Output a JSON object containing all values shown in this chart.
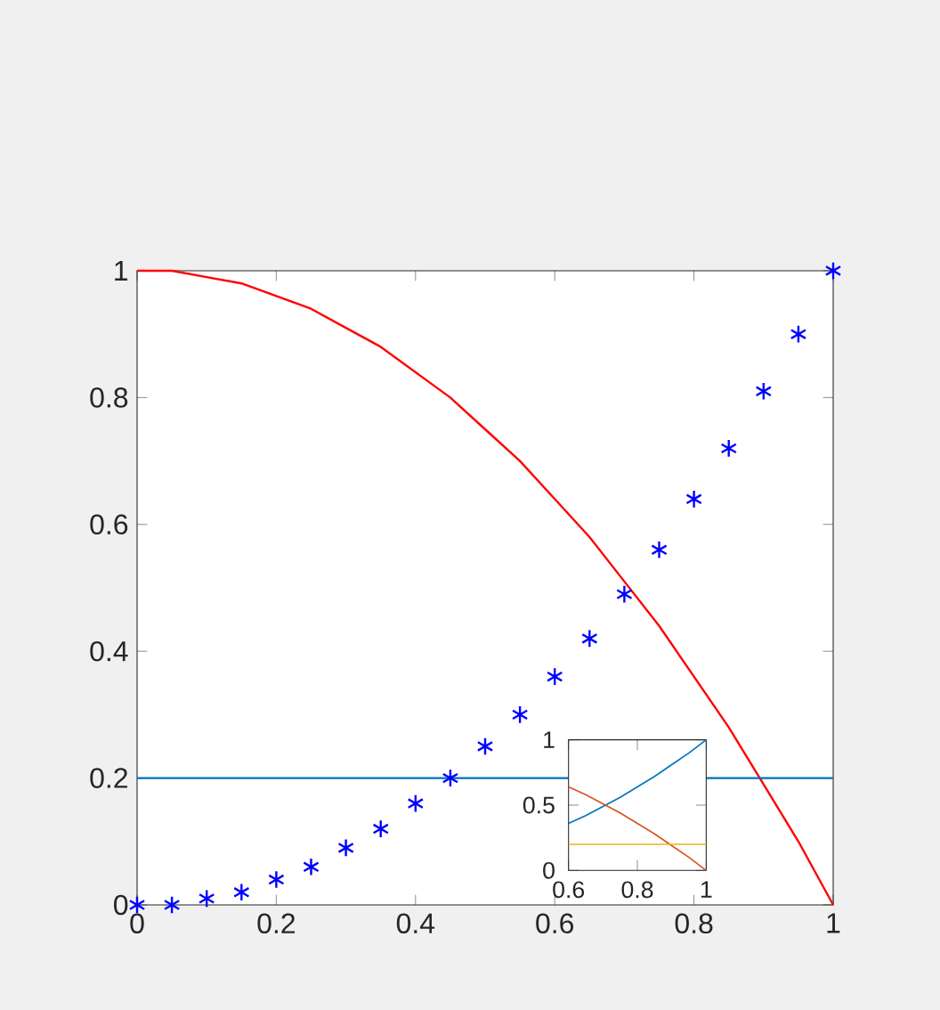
{
  "chart_data": [
    {
      "type": "line",
      "xlim": [
        0,
        1
      ],
      "ylim": [
        0,
        1
      ],
      "xticks": [
        0,
        0.2,
        0.4,
        0.6,
        0.8,
        1
      ],
      "yticks": [
        0,
        0.2,
        0.4,
        0.6,
        0.8,
        1
      ],
      "series": [
        {
          "type": "line",
          "color": "#ff0000",
          "x": [
            0,
            0.05,
            0.1,
            0.15,
            0.2,
            0.25,
            0.3,
            0.35,
            0.4,
            0.45,
            0.5,
            0.55,
            0.6,
            0.65,
            0.7,
            0.75,
            0.8,
            0.85,
            0.9,
            0.95,
            1
          ],
          "values": [
            1,
            1,
            0.99,
            0.98,
            0.96,
            0.94,
            0.91,
            0.88,
            0.84,
            0.8,
            0.75,
            0.7,
            0.64,
            0.58,
            0.51,
            0.44,
            0.36,
            0.28,
            0.19,
            0.1,
            0
          ]
        },
        {
          "type": "scatter",
          "color": "#0000ff",
          "x": [
            0,
            0.05,
            0.1,
            0.15,
            0.2,
            0.25,
            0.3,
            0.35,
            0.4,
            0.45,
            0.5,
            0.55,
            0.6,
            0.65,
            0.7,
            0.75,
            0.8,
            0.85,
            0.9,
            0.95,
            1
          ],
          "values": [
            0,
            0,
            0.01,
            0.02,
            0.04,
            0.06,
            0.09,
            0.12,
            0.16,
            0.2,
            0.25,
            0.3,
            0.36,
            0.42,
            0.49,
            0.56,
            0.64,
            0.72,
            0.81,
            0.9,
            1
          ]
        },
        {
          "type": "line",
          "color": "#0072bd",
          "x": [
            0,
            1
          ],
          "values": [
            0.2,
            0.2
          ]
        }
      ]
    },
    {
      "type": "line",
      "xlim": [
        0.6,
        1
      ],
      "ylim": [
        0,
        1
      ],
      "xticks": [
        0.6,
        0.8,
        1
      ],
      "yticks": [
        0,
        0.5,
        1
      ],
      "series": [
        {
          "color": "#0072bd",
          "x": [
            0.6,
            0.65,
            0.7,
            0.75,
            0.8,
            0.85,
            0.9,
            0.95,
            1
          ],
          "values": [
            0.36,
            0.42,
            0.49,
            0.56,
            0.64,
            0.72,
            0.81,
            0.9,
            1
          ]
        },
        {
          "color": "#d95319",
          "x": [
            0.6,
            0.65,
            0.7,
            0.75,
            0.8,
            0.85,
            0.9,
            0.95,
            1
          ],
          "values": [
            0.64,
            0.58,
            0.51,
            0.44,
            0.36,
            0.28,
            0.19,
            0.1,
            0
          ]
        },
        {
          "color": "#edb120",
          "x": [
            0.6,
            1
          ],
          "values": [
            0.2,
            0.2
          ]
        }
      ]
    }
  ]
}
